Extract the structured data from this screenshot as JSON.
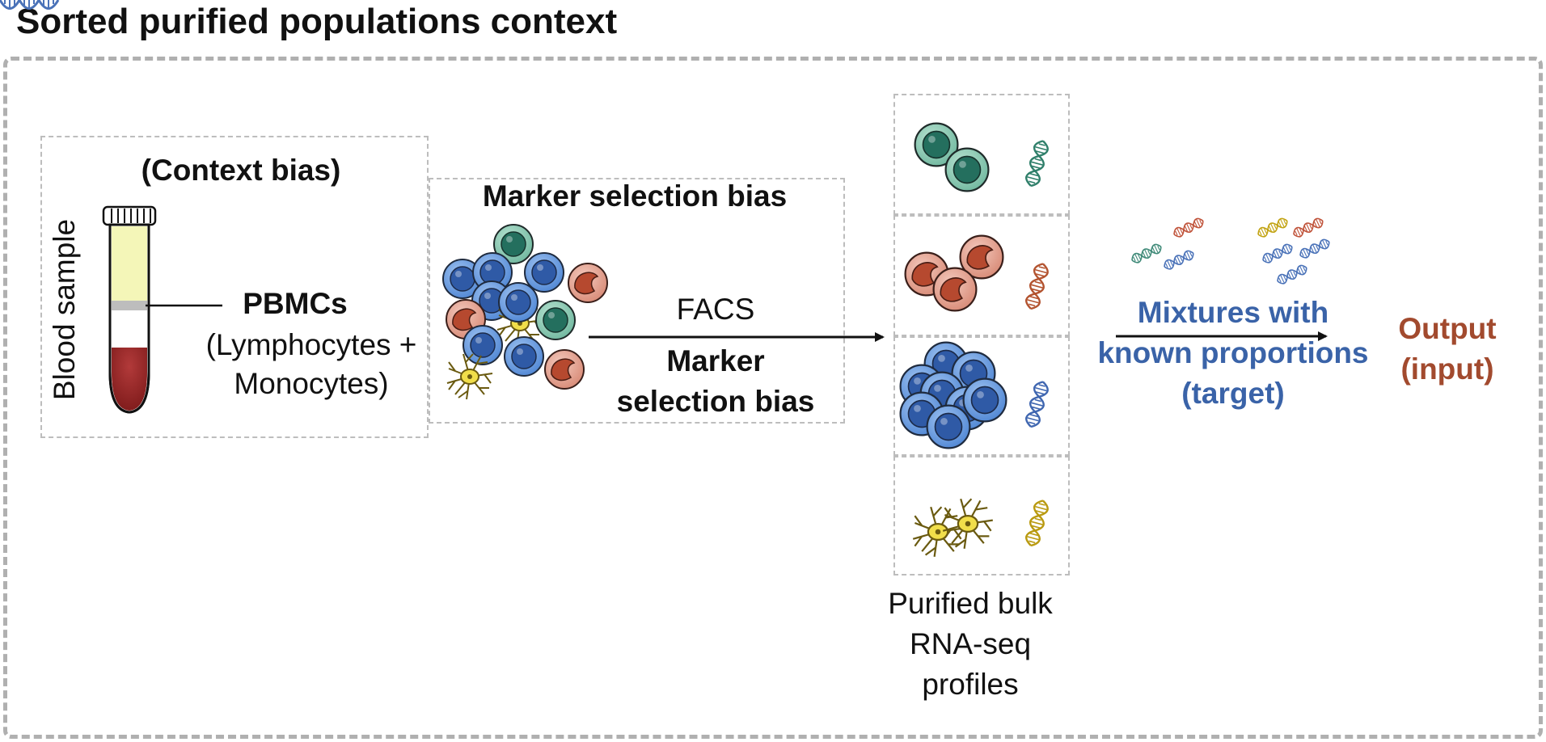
{
  "title": "Sorted purified populations context",
  "context_bias": "(Context bias)",
  "blood_sample": "Blood sample",
  "pbmc": {
    "title": "PBMCs",
    "line1": "(Lymphocytes +",
    "line2": "Monocytes)"
  },
  "marker_bias_top": "Marker selection bias",
  "facs": "FACS",
  "marker_bias_arrow": {
    "line1": "Marker",
    "line2": "selection bias"
  },
  "purified": {
    "line1": "Purified bulk",
    "line2": "RNA-seq",
    "line3": "profiles"
  },
  "mixtures": {
    "line1": "Mixtures with",
    "line2": "known proportions",
    "line3": "(target)"
  },
  "output": {
    "line1": "Output",
    "line2": "(input)"
  },
  "colors": {
    "blue_cell": "#5b8ed6",
    "green_cell": "#3f9d80",
    "red_cell": "#c0533a",
    "yellow_cell": "#e8d23a",
    "blue_text": "#3a63a8",
    "rust_text": "#a24a2e"
  }
}
